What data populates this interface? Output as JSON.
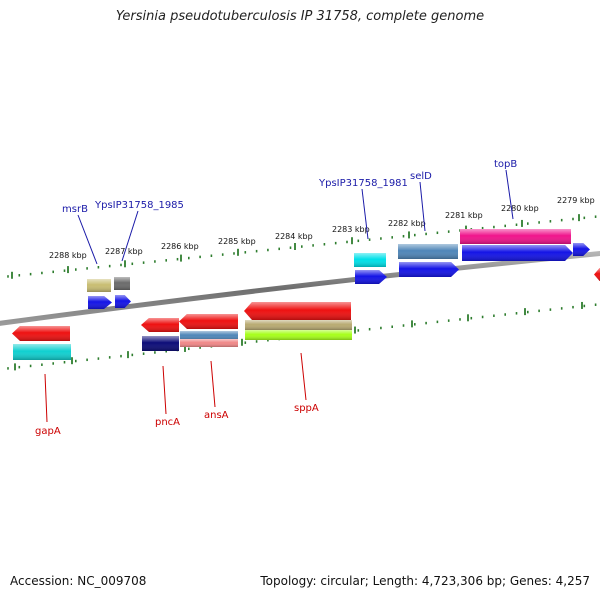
{
  "title": "Yersinia pseudotuberculosis IP 31758, complete genome",
  "footer": {
    "accession": "Accession: NC_009708",
    "topology": "Topology: circular; Length: 4,723,306 bp; Genes: 4,257"
  },
  "colors": {
    "backbone": "#7a7a7a",
    "tick": "#2e7d2e",
    "forward_label": "#1a1aa8",
    "reverse_label": "#cc0000"
  },
  "ticks": [
    "2288 kbp",
    "2287 kbp",
    "2286 kbp",
    "2285 kbp",
    "2284 kbp",
    "2283 kbp",
    "2282 kbp",
    "2281 kbp",
    "2280 kbp",
    "2279 kbp"
  ],
  "gene_labels": {
    "forward": [
      "msrB",
      "YpsIP31758_1985",
      "YpsIP31758_1981",
      "selD",
      "topB"
    ],
    "reverse": [
      "gapA",
      "pncA",
      "ansA",
      "sppA"
    ]
  },
  "features": [
    {
      "name": "msrB-cog",
      "color": "#c8bd72"
    },
    {
      "name": "YpsIP31758_1985-cog",
      "color": "#6b6b6b"
    },
    {
      "name": "msrB-cds",
      "color": "#1414e6"
    },
    {
      "name": "YpsIP31758_1985-cds",
      "color": "#1414e6"
    },
    {
      "name": "YpsIP31758_1981-cog",
      "color": "#00e0e8"
    },
    {
      "name": "YpsIP31758_1981-cds",
      "color": "#1414e6"
    },
    {
      "name": "selD-cog",
      "color": "#4f86b8"
    },
    {
      "name": "selD-cds",
      "color": "#1414e6"
    },
    {
      "name": "topB-cog",
      "color": "#f0148c"
    },
    {
      "name": "topB-cds",
      "color": "#1414e6"
    },
    {
      "name": "small-right-cds",
      "color": "#1414e6"
    },
    {
      "name": "edge-right-cds",
      "color": "#ee1111"
    },
    {
      "name": "gapA-cds",
      "color": "#ee1111"
    },
    {
      "name": "gapA-cog",
      "color": "#10d0d0"
    },
    {
      "name": "pncA-cds",
      "color": "#ee1111"
    },
    {
      "name": "pncA-cog",
      "color": "#0c0c78"
    },
    {
      "name": "ansA-cds",
      "color": "#ee1111"
    },
    {
      "name": "ansA-cog-a",
      "color": "#4f86b8"
    },
    {
      "name": "ansA-cog-b",
      "color": "#f08888"
    },
    {
      "name": "sppA-cds",
      "color": "#ee1111"
    },
    {
      "name": "sppA-cog-a",
      "color": "#b8aa72"
    },
    {
      "name": "sppA-cog-b",
      "color": "#a6ff1a"
    }
  ]
}
